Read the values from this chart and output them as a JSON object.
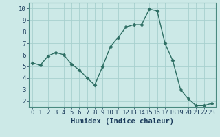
{
  "x": [
    0,
    1,
    2,
    3,
    4,
    5,
    6,
    7,
    8,
    9,
    10,
    11,
    12,
    13,
    14,
    15,
    16,
    17,
    18,
    19,
    20,
    21,
    22,
    23
  ],
  "y": [
    5.3,
    5.1,
    5.9,
    6.2,
    6.0,
    5.2,
    4.7,
    4.0,
    3.4,
    5.0,
    6.7,
    7.5,
    8.4,
    8.6,
    8.6,
    9.95,
    9.8,
    7.0,
    5.5,
    3.0,
    2.2,
    1.6,
    1.6,
    1.8
  ],
  "xlabel": "Humidex (Indice chaleur)",
  "xlim": [
    -0.5,
    23.5
  ],
  "ylim": [
    1.5,
    10.5
  ],
  "yticks": [
    2,
    3,
    4,
    5,
    6,
    7,
    8,
    9,
    10
  ],
  "xticks": [
    0,
    1,
    2,
    3,
    4,
    5,
    6,
    7,
    8,
    9,
    10,
    11,
    12,
    13,
    14,
    15,
    16,
    17,
    18,
    19,
    20,
    21,
    22,
    23
  ],
  "line_color": "#2d6e63",
  "marker": "D",
  "marker_size": 2.5,
  "bg_color": "#cce9e7",
  "grid_color": "#a8d0ce",
  "xlabel_fontsize": 7.5,
  "tick_fontsize": 6.5,
  "tick_color": "#1a3a5a",
  "spine_color": "#4a8a80"
}
